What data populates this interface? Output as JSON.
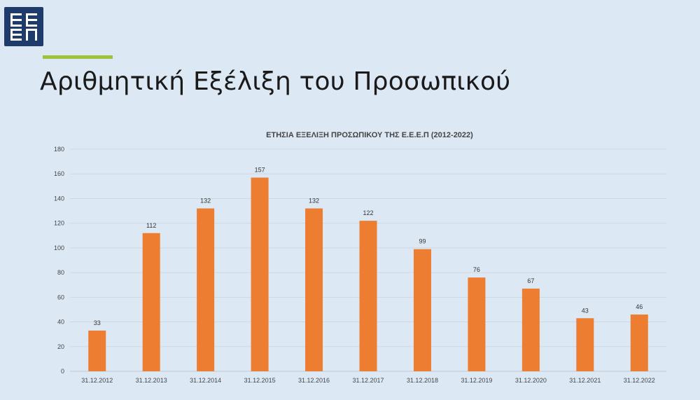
{
  "slide": {
    "title": "Αριθμητική Εξέλιξη του Προσωπικού",
    "logo_text": "ΕΕΕΠ",
    "colors": {
      "background": "#dce9f5",
      "accent": "#9dc33b",
      "logo": "#1f3b6b",
      "bar": "#ed7d31"
    }
  },
  "chart_data": {
    "type": "bar",
    "title": "ΕΤΗΣΙΑ ΕΞΕΛΙΞΗ ΠΡΟΣΩΠΙΚΟΥ ΤΗΣ Ε.Ε.Ε.Π (2012-2022)",
    "xlabel": "",
    "ylabel": "",
    "categories": [
      "31.12.2012",
      "31.12.2013",
      "31.12.2014",
      "31.12.2015",
      "31.12.2016",
      "31.12.2017",
      "31.12.2018",
      "31.12.2019",
      "31.12.2020",
      "31.12.2021",
      "31.12.2022"
    ],
    "values": [
      33,
      112,
      132,
      157,
      132,
      122,
      99,
      76,
      67,
      43,
      46
    ],
    "ylim": [
      0,
      180
    ],
    "yticks": [
      0,
      20,
      40,
      60,
      80,
      100,
      120,
      140,
      160,
      180
    ],
    "grid": true,
    "legend": "none",
    "data_labels": true
  }
}
